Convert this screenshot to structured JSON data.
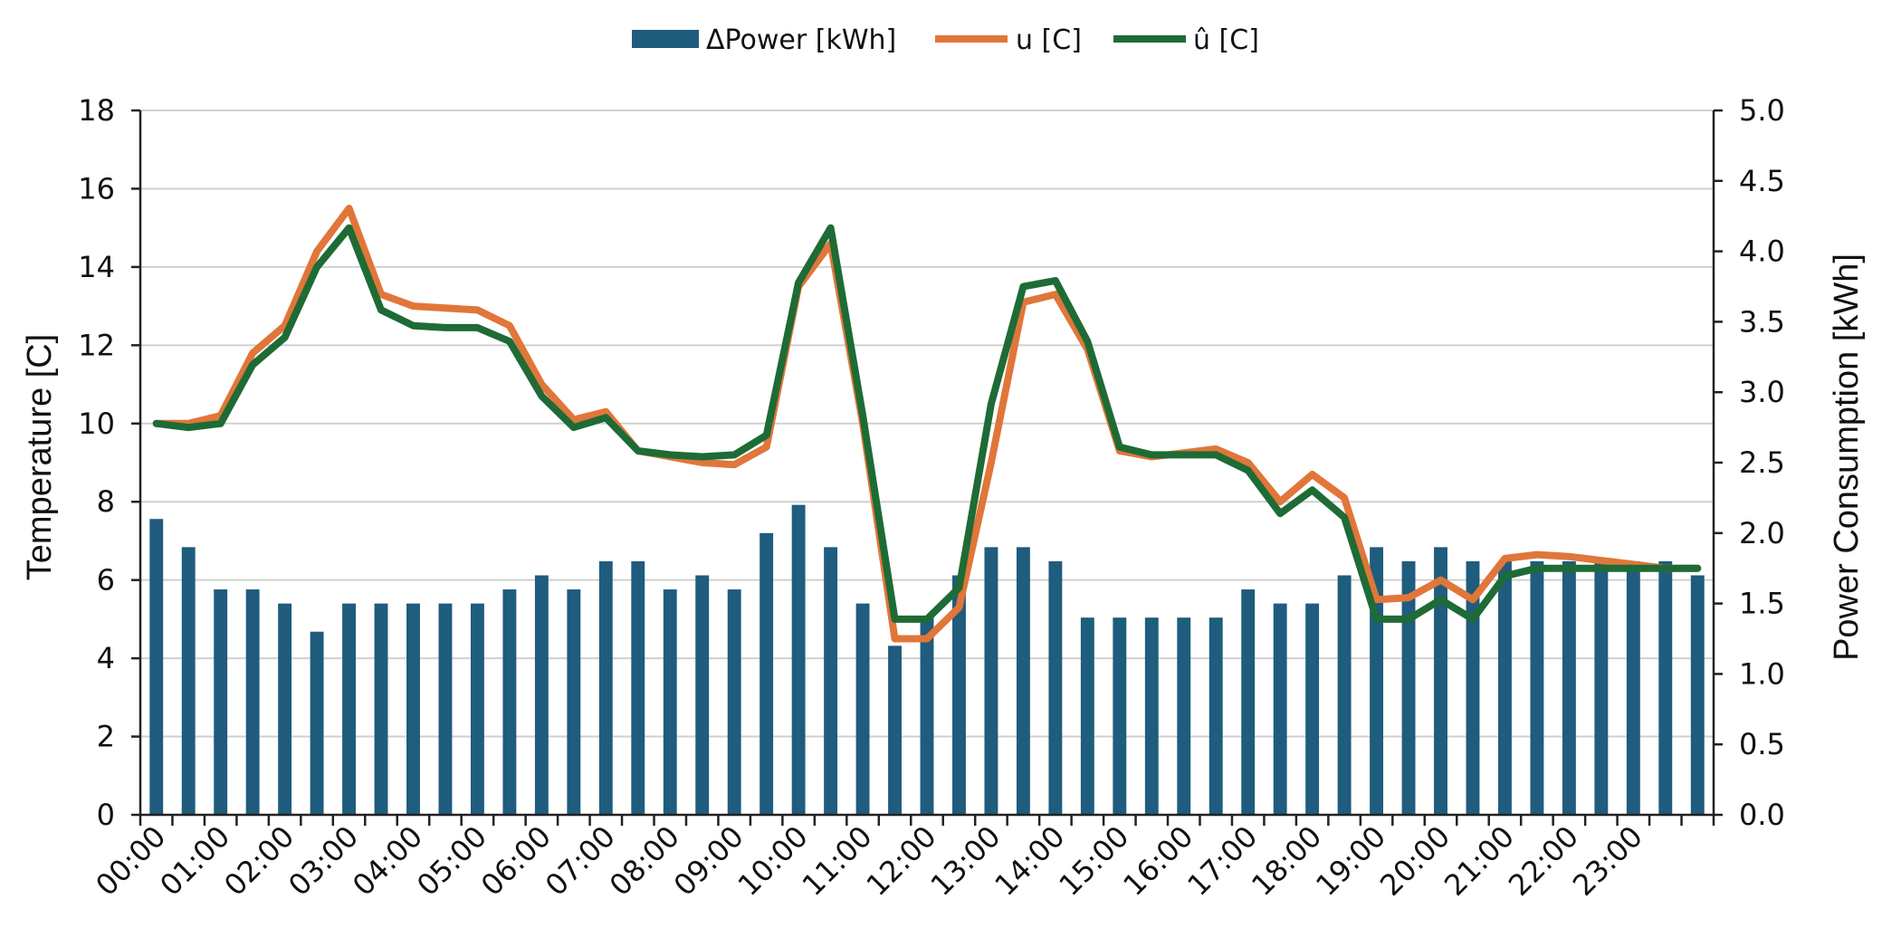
{
  "chart_data": {
    "type": "bar",
    "title": "",
    "xlabel": "",
    "ylabel_left": "Temperature [C]",
    "ylabel_right": "Power Consumption [kWh]",
    "ylim_left": [
      0,
      18
    ],
    "ylim_right": [
      0,
      5
    ],
    "yticks_left": [
      "0",
      "2",
      "4",
      "6",
      "8",
      "10",
      "12",
      "14",
      "16",
      "18"
    ],
    "yticks_right": [
      "0.0",
      "0.5",
      "1.0",
      "1.5",
      "2.0",
      "2.5",
      "3.0",
      "3.5",
      "4.0",
      "4.5",
      "5.0"
    ],
    "x_tick_labels": [
      "00:00",
      "01:00",
      "02:00",
      "03:00",
      "04:00",
      "05:00",
      "06:00",
      "07:00",
      "08:00",
      "09:00",
      "10:00",
      "11:00",
      "12:00",
      "13:00",
      "14:00",
      "15:00",
      "16:00",
      "17:00",
      "18:00",
      "19:00",
      "20:00",
      "21:00",
      "22:00",
      "23:00"
    ],
    "grid": true,
    "legend_position": "top-center",
    "legend": [
      "ΔPower [kWh]",
      "u [C]",
      "û [C]"
    ],
    "colors": {
      "bar": "#1f5c7d",
      "u": "#e0763a",
      "uhat": "#1e6b35",
      "grid": "#d0d0d0",
      "axis": "#222222"
    },
    "series": [
      {
        "name": "ΔPower [kWh]",
        "type": "bar",
        "axis": "right",
        "values": [
          2.1,
          1.9,
          1.6,
          1.6,
          1.5,
          1.3,
          1.5,
          1.5,
          1.5,
          1.5,
          1.5,
          1.6,
          1.7,
          1.6,
          1.8,
          1.8,
          1.6,
          1.7,
          1.6,
          2.0,
          2.2,
          1.9,
          1.5,
          1.2,
          1.4,
          1.7,
          1.9,
          1.9,
          1.8,
          1.4,
          1.4,
          1.4,
          1.4,
          1.4,
          1.6,
          1.5,
          1.5,
          1.7,
          1.9,
          1.8,
          1.9,
          1.8,
          1.8,
          1.8,
          1.8,
          1.8,
          1.8,
          1.8,
          1.7
        ]
      },
      {
        "name": "u [C]",
        "type": "line",
        "axis": "left",
        "values": [
          10.0,
          10.0,
          10.2,
          11.8,
          12.5,
          14.4,
          15.5,
          13.3,
          13.0,
          12.95,
          12.9,
          12.5,
          11.0,
          10.1,
          10.3,
          9.3,
          9.15,
          9.0,
          8.95,
          9.4,
          13.5,
          14.6,
          10.0,
          4.5,
          4.5,
          5.3,
          9.0,
          13.1,
          13.3,
          11.9,
          9.3,
          9.15,
          9.25,
          9.35,
          9.0,
          8.0,
          8.7,
          8.1,
          5.5,
          5.55,
          6.0,
          5.5,
          6.55,
          6.65,
          6.6,
          6.5,
          6.4,
          6.3,
          6.3
        ]
      },
      {
        "name": "û [C]",
        "type": "line",
        "axis": "left",
        "values": [
          10.0,
          9.9,
          10.0,
          11.5,
          12.2,
          14.0,
          15.0,
          12.9,
          12.5,
          12.45,
          12.45,
          12.1,
          10.7,
          9.9,
          10.15,
          9.3,
          9.2,
          9.15,
          9.2,
          9.7,
          13.6,
          15.0,
          10.2,
          5.0,
          5.0,
          5.8,
          10.5,
          13.5,
          13.65,
          12.1,
          9.4,
          9.2,
          9.2,
          9.2,
          8.8,
          7.7,
          8.3,
          7.6,
          5.0,
          5.0,
          5.5,
          5.0,
          6.1,
          6.3,
          6.3,
          6.3,
          6.3,
          6.3,
          6.3
        ]
      }
    ]
  }
}
